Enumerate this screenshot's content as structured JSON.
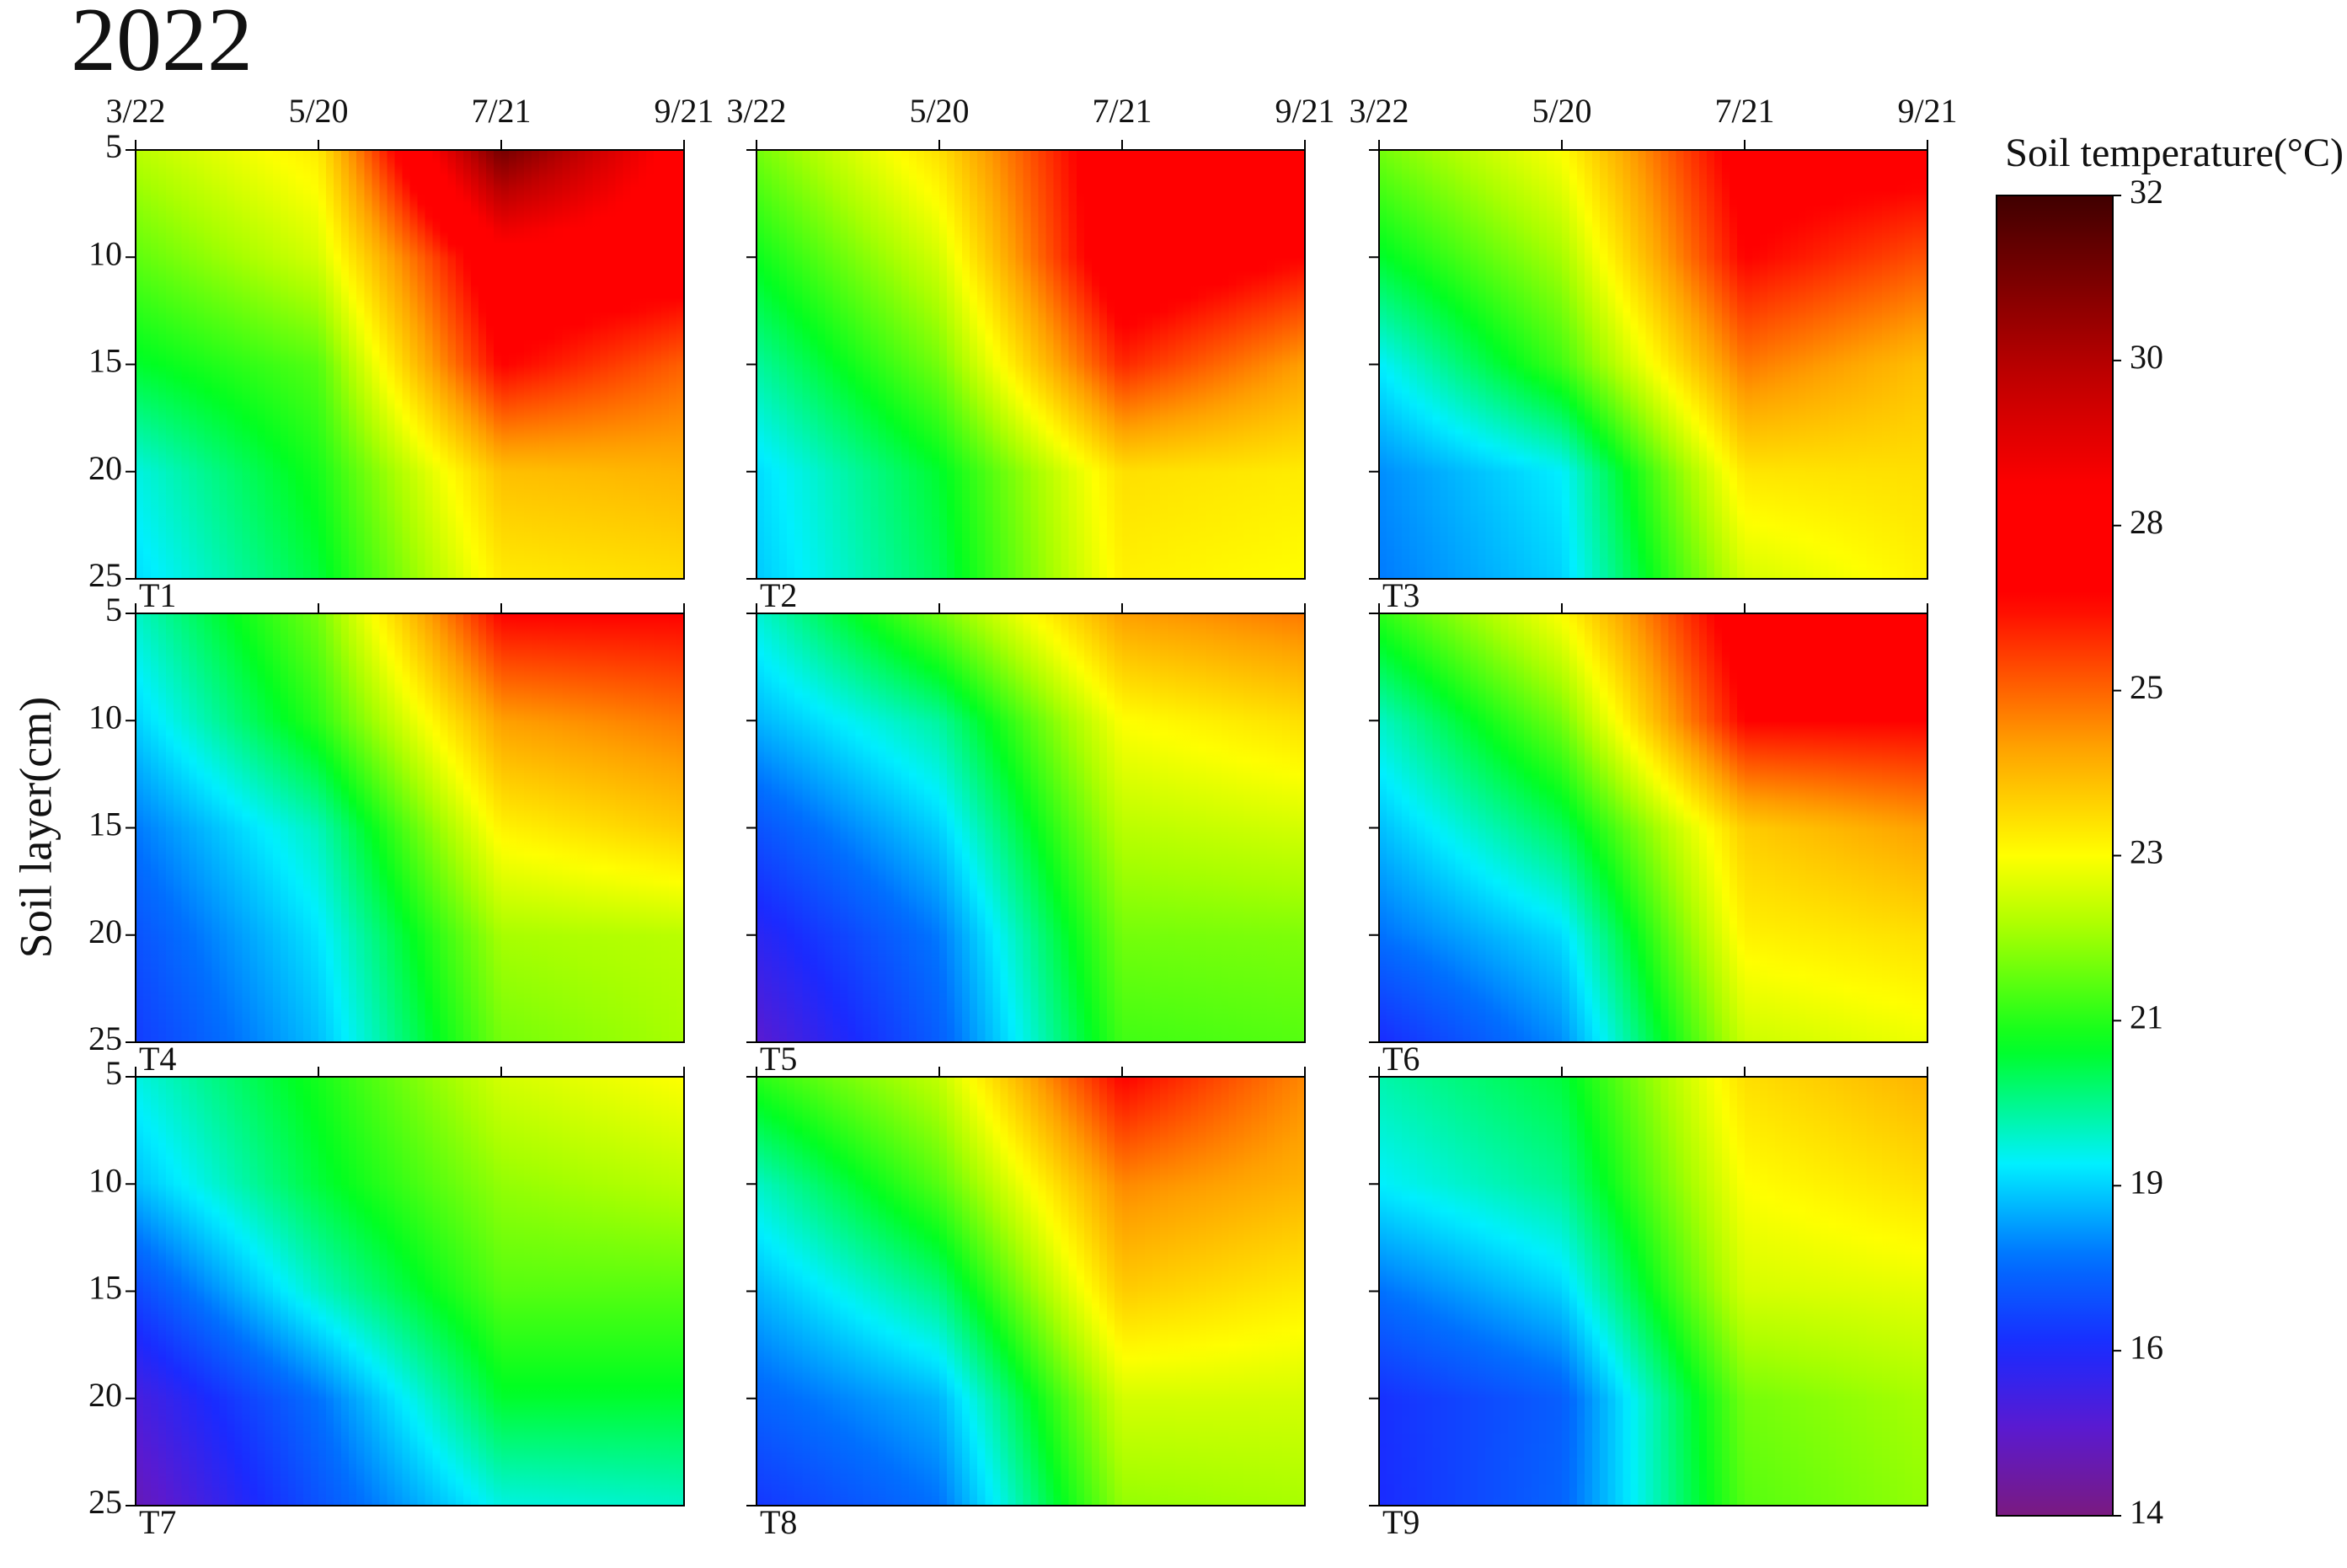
{
  "title": "2022",
  "ylabel": "Soil layer(cm)",
  "colorbar": {
    "title": "Soil temperature(°C)",
    "lim": [
      14,
      32
    ],
    "ticks": [
      14,
      {
        "value": 16.25,
        "label": "16"
      },
      {
        "value": 18.5,
        "label": "19"
      },
      {
        "value": 20.75,
        "label": "21"
      },
      23,
      {
        "value": 25.25,
        "label": "25"
      },
      {
        "value": 27.5,
        "label": "28"
      },
      {
        "value": 29.75,
        "label": "30"
      },
      32
    ],
    "colors": [
      [
        14,
        "#7a1a80"
      ],
      [
        15.2,
        "#5a1ad0"
      ],
      [
        16.3,
        "#1a2aff"
      ],
      [
        17.5,
        "#0070ff"
      ],
      [
        18.8,
        "#00f0ff"
      ],
      [
        20.4,
        "#00ff20"
      ],
      [
        22,
        "#a8ff00"
      ],
      [
        23,
        "#ffff00"
      ],
      [
        24.5,
        "#ffa000"
      ],
      [
        25.7,
        "#ff4000"
      ],
      [
        26.5,
        "#ff0000"
      ],
      [
        28,
        "#ff0000"
      ],
      [
        29.5,
        "#c00000"
      ],
      [
        32,
        "#400000"
      ]
    ]
  },
  "chart_data": [
    {
      "type": "heatmap",
      "label": "T1",
      "x": [
        "3/22",
        "5/20",
        "7/21",
        "9/21"
      ],
      "y": [
        5,
        10,
        15,
        20,
        25
      ],
      "ylim": [
        5,
        25
      ],
      "values": [
        [
          22.2,
          23.3,
          31,
          27.5
        ],
        [
          21.3,
          22.5,
          27.5,
          27.2
        ],
        [
          20.3,
          21.2,
          26.5,
          25.3
        ],
        [
          19.0,
          20.6,
          24.0,
          24.2
        ],
        [
          18.6,
          20.2,
          23.3,
          23.5
        ]
      ]
    },
    {
      "type": "heatmap",
      "label": "T2",
      "x": [
        "3/22",
        "5/20",
        "7/21",
        "9/21"
      ],
      "y": [
        5,
        10,
        15,
        20,
        25
      ],
      "ylim": [
        5,
        25
      ],
      "values": [
        [
          21.5,
          23.5,
          27.5,
          27.5
        ],
        [
          20.5,
          22.5,
          27.5,
          26.5
        ],
        [
          19.5,
          21.5,
          26,
          24.5
        ],
        [
          18.6,
          20.3,
          23.5,
          23.3
        ],
        [
          18.4,
          20,
          23.2,
          23
        ]
      ]
    },
    {
      "type": "heatmap",
      "label": "T3",
      "x": [
        "3/22",
        "5/20",
        "7/21",
        "9/21"
      ],
      "y": [
        5,
        10,
        15,
        20,
        25
      ],
      "ylim": [
        5,
        25
      ],
      "values": [
        [
          21.5,
          23,
          27,
          27
        ],
        [
          20.3,
          22,
          26.5,
          25.5
        ],
        [
          18.8,
          21,
          25,
          24
        ],
        [
          17.8,
          18.8,
          23.4,
          23.5
        ],
        [
          17.6,
          18.5,
          22.5,
          23.2
        ]
      ]
    },
    {
      "type": "heatmap",
      "label": "T4",
      "x": [
        "3/22",
        "5/20",
        "7/21",
        "9/21"
      ],
      "y": [
        5,
        10,
        15,
        20,
        25
      ],
      "ylim": [
        5,
        25
      ],
      "values": [
        [
          19.2,
          21.5,
          26.5,
          26.5
        ],
        [
          18.5,
          20.8,
          24.5,
          25
        ],
        [
          17.6,
          19.3,
          23.2,
          23.8
        ],
        [
          17,
          18.7,
          22,
          22.2
        ],
        [
          16.6,
          18.3,
          21.5,
          22
        ]
      ]
    },
    {
      "type": "heatmap",
      "label": "T5",
      "x": [
        "3/22",
        "5/20",
        "7/21",
        "9/21"
      ],
      "y": [
        5,
        10,
        15,
        20,
        25
      ],
      "ylim": [
        5,
        25
      ],
      "values": [
        [
          19.1,
          21.5,
          24.5,
          25
        ],
        [
          18.2,
          19.5,
          23,
          23.5
        ],
        [
          17,
          18.5,
          22.2,
          22.5
        ],
        [
          16,
          17.6,
          21.5,
          21.6
        ],
        [
          15.2,
          17.2,
          21,
          21.2
        ]
      ]
    },
    {
      "type": "heatmap",
      "label": "T6",
      "x": [
        "3/22",
        "5/20",
        "7/21",
        "9/21"
      ],
      "y": [
        5,
        10,
        15,
        20,
        25
      ],
      "ylim": [
        5,
        25
      ],
      "values": [
        [
          20.8,
          23,
          27.2,
          27.2
        ],
        [
          19.2,
          21.5,
          26.5,
          26.5
        ],
        [
          18.3,
          20,
          23.8,
          24.5
        ],
        [
          17.5,
          18.6,
          23.2,
          23.5
        ],
        [
          16.3,
          17.8,
          22.4,
          22.8
        ]
      ]
    },
    {
      "type": "heatmap",
      "label": "T7",
      "x": [
        "3/22",
        "5/20",
        "7/21",
        "9/21"
      ],
      "y": [
        5,
        10,
        15,
        20,
        25
      ],
      "ylim": [
        5,
        25
      ],
      "values": [
        [
          19,
          20.6,
          22.5,
          23
        ],
        [
          18.3,
          20.2,
          21.8,
          22.2
        ],
        [
          16.8,
          19.2,
          21.2,
          21.2
        ],
        [
          15.5,
          17.5,
          20.3,
          20.3
        ],
        [
          14.8,
          17,
          19,
          19.2
        ]
      ]
    },
    {
      "type": "heatmap",
      "label": "T8",
      "x": [
        "3/22",
        "5/20",
        "7/21",
        "9/21"
      ],
      "y": [
        5,
        10,
        15,
        20,
        25
      ],
      "ylim": [
        5,
        25
      ],
      "values": [
        [
          20.8,
          22.3,
          26.5,
          24.8
        ],
        [
          19.2,
          21.2,
          24.8,
          24.2
        ],
        [
          18.2,
          19.7,
          23.8,
          23.3
        ],
        [
          17.3,
          18.2,
          22.5,
          22.5
        ],
        [
          16.5,
          17.5,
          21.8,
          22
        ]
      ]
    },
    {
      "type": "heatmap",
      "label": "T9",
      "x": [
        "3/22",
        "5/20",
        "7/21",
        "9/21"
      ],
      "y": [
        5,
        10,
        15,
        20,
        25
      ],
      "ylim": [
        5,
        25
      ],
      "values": [
        [
          19.4,
          20.2,
          23.5,
          24.2
        ],
        [
          18.8,
          19.6,
          23,
          23.5
        ],
        [
          17.5,
          18.5,
          22.5,
          22.7
        ],
        [
          16.4,
          17.2,
          21.5,
          22
        ],
        [
          16.3,
          17.3,
          21.2,
          21.8
        ]
      ]
    }
  ]
}
